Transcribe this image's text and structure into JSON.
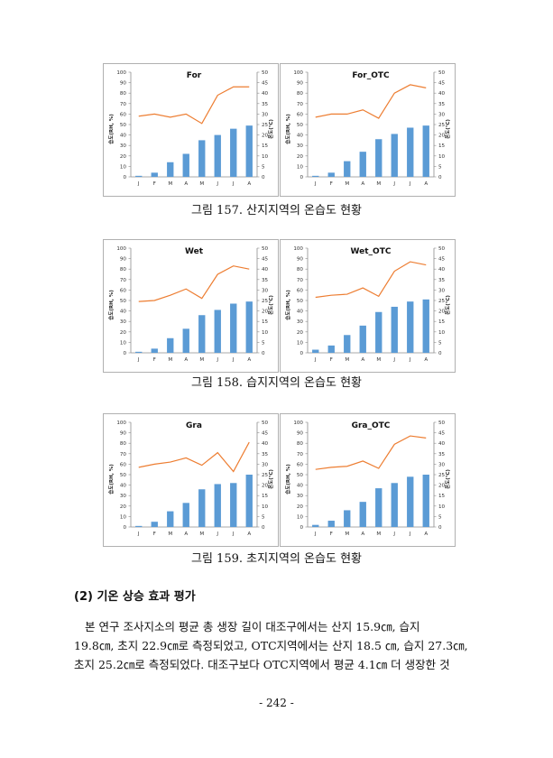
{
  "charts": [
    {
      "title": "For",
      "y_left_label": "습도(RH, %)",
      "y_right_label": "온도(℃)"
    },
    {
      "title": "For_OTC",
      "y_left_label": "습도(RH, %)",
      "y_right_label": "온도(℃)"
    },
    {
      "title": "Wet",
      "y_left_label": "습도(RH, %)",
      "y_right_label": "온도(℃)"
    },
    {
      "title": "Wet_OTC",
      "y_left_label": "습도(RH, %)",
      "y_right_label": "온도(℃)"
    },
    {
      "title": "Gra",
      "y_left_label": "습도(RH, %)",
      "y_right_label": "온도(℃)"
    },
    {
      "title": "Gra_OTC",
      "y_left_label": "습도(RH, %)",
      "y_right_label": "온도(℃)"
    }
  ],
  "chart_data": [
    {
      "type": "bar+line",
      "title": "For",
      "categories": [
        "J",
        "F",
        "M",
        "A",
        "M",
        "J",
        "J",
        "A"
      ],
      "series": [
        {
          "name": "humidity",
          "axis": "left",
          "type": "bar",
          "values": [
            1,
            4,
            14,
            22,
            35,
            40,
            46,
            49
          ]
        },
        {
          "name": "temperature",
          "axis": "right",
          "type": "line",
          "values": [
            29,
            30,
            28.5,
            30,
            25.5,
            39,
            43,
            43
          ]
        }
      ],
      "y_left": {
        "range": [
          0,
          100
        ],
        "ticks": [
          0,
          10,
          20,
          30,
          40,
          50,
          60,
          70,
          80,
          90,
          100
        ]
      },
      "y_right": {
        "range": [
          0,
          50
        ],
        "ticks": [
          0,
          5,
          10,
          15,
          20,
          25,
          30,
          35,
          40,
          45,
          50
        ]
      }
    },
    {
      "type": "bar+line",
      "title": "For_OTC",
      "categories": [
        "J",
        "F",
        "M",
        "A",
        "M",
        "J",
        "J",
        "A"
      ],
      "series": [
        {
          "name": "humidity",
          "axis": "left",
          "type": "bar",
          "values": [
            1,
            4,
            15,
            24,
            36,
            41,
            47,
            49
          ]
        },
        {
          "name": "temperature",
          "axis": "right",
          "type": "line",
          "values": [
            28.5,
            30,
            30,
            32,
            28,
            40,
            44,
            42.5
          ]
        }
      ],
      "y_left": {
        "range": [
          0,
          100
        ],
        "ticks": [
          0,
          10,
          20,
          30,
          40,
          50,
          60,
          70,
          80,
          90,
          100
        ]
      },
      "y_right": {
        "range": [
          0,
          50
        ],
        "ticks": [
          0,
          5,
          10,
          15,
          20,
          25,
          30,
          35,
          40,
          45,
          50
        ]
      }
    },
    {
      "type": "bar+line",
      "title": "Wet",
      "categories": [
        "J",
        "F",
        "M",
        "A",
        "M",
        "J",
        "J",
        "A"
      ],
      "series": [
        {
          "name": "humidity",
          "axis": "left",
          "type": "bar",
          "values": [
            1,
            4,
            14,
            23,
            36,
            41,
            47,
            49
          ]
        },
        {
          "name": "temperature",
          "axis": "right",
          "type": "line",
          "values": [
            24.5,
            25,
            27.5,
            30.5,
            26,
            37.5,
            41.5,
            40
          ]
        }
      ],
      "y_left": {
        "range": [
          0,
          100
        ],
        "ticks": [
          0,
          10,
          20,
          30,
          40,
          50,
          60,
          70,
          80,
          90,
          100
        ]
      },
      "y_right": {
        "range": [
          0,
          50
        ],
        "ticks": [
          0,
          5,
          10,
          15,
          20,
          25,
          30,
          35,
          40,
          45,
          50
        ]
      }
    },
    {
      "type": "bar+line",
      "title": "Wet_OTC",
      "categories": [
        "J",
        "F",
        "M",
        "A",
        "M",
        "J",
        "J",
        "A"
      ],
      "series": [
        {
          "name": "humidity",
          "axis": "left",
          "type": "bar",
          "values": [
            3,
            7,
            17,
            26,
            39,
            44,
            49,
            51
          ]
        },
        {
          "name": "temperature",
          "axis": "right",
          "type": "line",
          "values": [
            26.5,
            27.5,
            28,
            31,
            27,
            39,
            43.5,
            42
          ]
        }
      ],
      "y_left": {
        "range": [
          0,
          100
        ],
        "ticks": [
          0,
          10,
          20,
          30,
          40,
          50,
          60,
          70,
          80,
          90,
          100
        ]
      },
      "y_right": {
        "range": [
          0,
          50
        ],
        "ticks": [
          0,
          5,
          10,
          15,
          20,
          25,
          30,
          35,
          40,
          45,
          50
        ]
      }
    },
    {
      "type": "bar+line",
      "title": "Gra",
      "categories": [
        "J",
        "F",
        "M",
        "A",
        "M",
        "J",
        "J",
        "A"
      ],
      "series": [
        {
          "name": "humidity",
          "axis": "left",
          "type": "bar",
          "values": [
            1,
            5,
            15,
            23,
            36,
            41,
            42,
            50
          ]
        },
        {
          "name": "temperature",
          "axis": "right",
          "type": "line",
          "values": [
            28.5,
            30,
            31,
            33,
            29.5,
            35.5,
            26.5,
            40.5
          ]
        }
      ],
      "y_left": {
        "range": [
          0,
          100
        ],
        "ticks": [
          0,
          10,
          20,
          30,
          40,
          50,
          60,
          70,
          80,
          90,
          100
        ]
      },
      "y_right": {
        "range": [
          0,
          50
        ],
        "ticks": [
          0,
          5,
          10,
          15,
          20,
          25,
          30,
          35,
          40,
          45,
          50
        ]
      }
    },
    {
      "type": "bar+line",
      "title": "Gra_OTC",
      "categories": [
        "J",
        "F",
        "M",
        "A",
        "M",
        "J",
        "J",
        "A"
      ],
      "series": [
        {
          "name": "humidity",
          "axis": "left",
          "type": "bar",
          "values": [
            2,
            6,
            16,
            24,
            37,
            42,
            48,
            50
          ]
        },
        {
          "name": "temperature",
          "axis": "right",
          "type": "line",
          "values": [
            27.5,
            28.5,
            29,
            31.5,
            28,
            39.5,
            43.5,
            42.5
          ]
        }
      ],
      "y_left": {
        "range": [
          0,
          100
        ],
        "ticks": [
          0,
          10,
          20,
          30,
          40,
          50,
          60,
          70,
          80,
          90,
          100
        ]
      },
      "y_right": {
        "range": [
          0,
          50
        ],
        "ticks": [
          0,
          5,
          10,
          15,
          20,
          25,
          30,
          35,
          40,
          45,
          50
        ]
      }
    }
  ],
  "captions": [
    "그림 157. 산지지역의 온습도 현황",
    "그림 158. 습지지역의 온습도 현황",
    "그림 159. 초지지역의 온습도 현황"
  ],
  "section_heading": "(2) 기온 상승 효과 평가",
  "body_lines": [
    "본 연구 조사지소의 평균 총 생장 길이 대조구에서는 산지 15.9㎝, 습지",
    "19.8㎝, 초지 22.9㎝로 측정되었고, OTC지역에서는 산지 18.5 ㎝, 습지 27.3㎝,",
    "초지 25.2㎝로 측정되었다. 대조구보다 OTC지역에서 평균 4.1㎝ 더 생장한 것"
  ],
  "page_number": "- 242 -",
  "colors": {
    "bar": "#5b9bd5",
    "line": "#ed7d31",
    "axis": "#8c8c8c",
    "frame": "#b0b0b0"
  }
}
